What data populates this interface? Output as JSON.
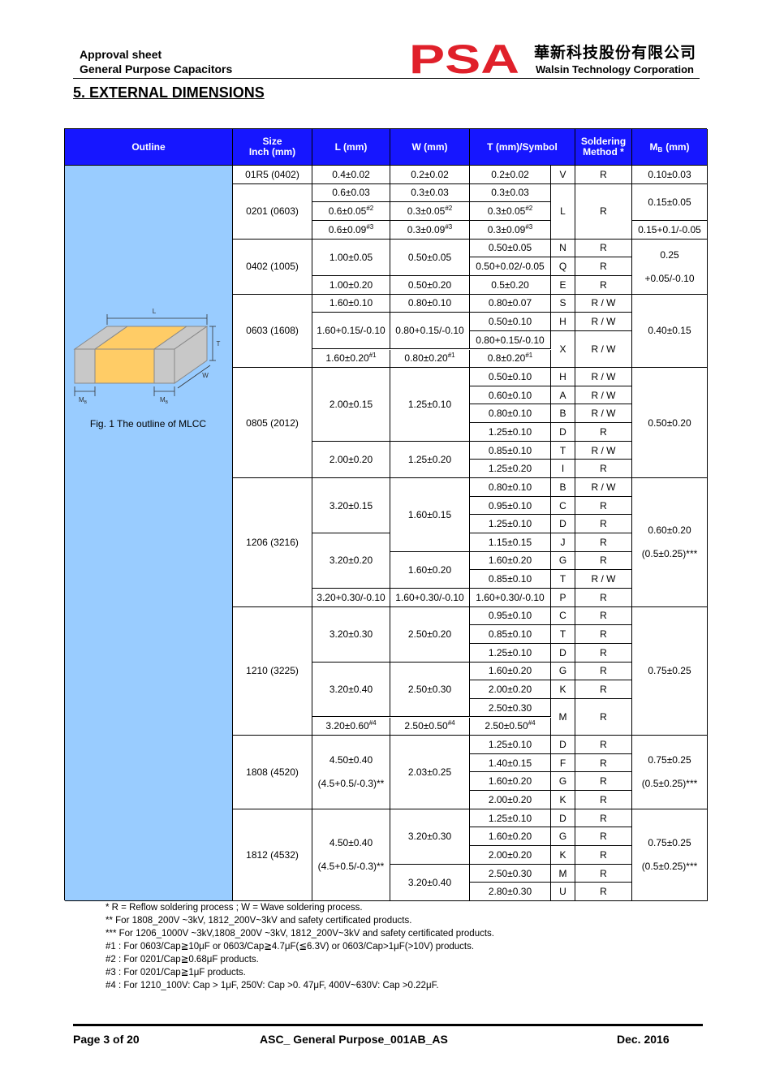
{
  "header": {
    "doc_title": "Approval sheet",
    "product": "General Purpose Capacitors",
    "logo": "PSA",
    "company_cn": "華新科技股份有限公司",
    "company_en": "Walsin Technology Corporation"
  },
  "section_title": "5. EXTERNAL DIMENSIONS",
  "table": {
    "headers": {
      "outline": "Outline",
      "size": [
        "Size",
        "Inch (mm)"
      ],
      "L": "L (mm)",
      "W": "W (mm)",
      "T": "T (mm)/Symbol",
      "soldering": [
        "Soldering",
        "Method *"
      ],
      "mb": {
        "main": "M",
        "sub": "B",
        "unit": "(mm)"
      }
    },
    "figure": {
      "L": "L",
      "T": "T",
      "W": "W",
      "mb_left": {
        "main": "M",
        "sub": "B"
      },
      "mb_right": {
        "main": "M",
        "sub": "B"
      },
      "caption": "Fig. 1 The outline of MLCC"
    },
    "groups": [
      {
        "size": "01R5 (0402)",
        "L": [
          "0.4±0.02"
        ],
        "W": [
          "0.2±0.02"
        ],
        "T": [
          "0.2±0.02"
        ],
        "symbol": [
          "V"
        ],
        "soldering": [
          "R"
        ],
        "mb": [
          "0.10±0.03"
        ]
      },
      {
        "size": "0201 (0603)",
        "L": [
          "0.6±0.03",
          {
            "text": "0.6±0.05",
            "sup": "#2"
          },
          {
            "text": "0.6±0.09",
            "sup": "#3"
          }
        ],
        "W": [
          "0.3±0.03",
          {
            "text": "0.3±0.05",
            "sup": "#2"
          },
          {
            "text": "0.3±0.09",
            "sup": "#3"
          }
        ],
        "T": [
          "0.3±0.03",
          {
            "text": "0.3±0.05",
            "sup": "#2"
          },
          {
            "text": "0.3±0.09",
            "sup": "#3"
          }
        ],
        "symbol": [
          "L"
        ],
        "soldering": [
          "R"
        ],
        "mb": [
          "0.15±0.05",
          "0.15+0.1/-0.05"
        ]
      },
      {
        "size": "0402 (1005)",
        "L": [
          "1.00±0.05",
          "1.00±0.20"
        ],
        "W": [
          "0.50±0.05",
          "0.50±0.20"
        ],
        "T": [
          "0.50±0.05",
          "0.50+0.02/-0.05",
          "0.5±0.20"
        ],
        "symbol": [
          "N",
          "Q",
          "E"
        ],
        "soldering": [
          "R",
          "R",
          "R"
        ],
        "mb": [
          {
            "lines": [
              "0.25",
              "+0.05/-0.10"
            ]
          }
        ]
      },
      {
        "size": "0603 (1608)",
        "L": [
          "1.60±0.10",
          "1.60+0.15/-0.10",
          {
            "text": "1.60±0.20",
            "sup": "#1"
          }
        ],
        "W": [
          "0.80±0.10",
          "0.80+0.15/-0.10",
          {
            "text": "0.80±0.20",
            "sup": "#1"
          }
        ],
        "T": [
          "0.80±0.07",
          "0.50±0.10",
          "0.80+0.15/-0.10",
          {
            "text": "0.8±0.20",
            "sup": "#1"
          }
        ],
        "symbol": [
          "S",
          "H",
          "X"
        ],
        "soldering": [
          "R / W",
          "R / W",
          "R / W"
        ],
        "mb": [
          "0.40±0.15"
        ]
      },
      {
        "size": "0805 (2012)",
        "L": [
          "2.00±0.15",
          "2.00±0.20"
        ],
        "W": [
          "1.25±0.10",
          "1.25±0.20"
        ],
        "T": [
          "0.50±0.10",
          "0.60±0.10",
          "0.80±0.10",
          "1.25±0.10",
          "0.85±0.10",
          "1.25±0.20"
        ],
        "symbol": [
          "H",
          "A",
          "B",
          "D",
          "T",
          "I"
        ],
        "soldering": [
          "R / W",
          "R / W",
          "R / W",
          "R",
          "R / W",
          "R"
        ],
        "mb": [
          "0.50±0.20"
        ]
      },
      {
        "size": "1206 (3216)",
        "L": [
          "3.20±0.15",
          "3.20±0.20",
          "3.20+0.30/-0.10"
        ],
        "W": [
          "1.60±0.15",
          "1.60±0.20",
          "1.60+0.30/-0.10"
        ],
        "T": [
          "0.80±0.10",
          "0.95±0.10",
          "1.25±0.10",
          "1.15±0.15",
          "1.60±0.20",
          "0.85±0.10",
          "1.60+0.30/-0.10"
        ],
        "symbol": [
          "B",
          "C",
          "D",
          "J",
          "G",
          "T",
          "P"
        ],
        "soldering": [
          "R / W",
          "R",
          "R",
          "R",
          "R",
          "R / W",
          "R"
        ],
        "mb": [
          {
            "lines": [
              "0.60±0.20",
              "(0.5±0.25)***"
            ]
          }
        ]
      },
      {
        "size": "1210 (3225)",
        "L": [
          "3.20±0.30",
          "3.20±0.40",
          {
            "text": "3.20±0.60",
            "sup": "#4"
          }
        ],
        "W": [
          "2.50±0.20",
          "2.50±0.30",
          {
            "text": "2.50±0.50",
            "sup": "#4"
          }
        ],
        "T": [
          "0.95±0.10",
          "0.85±0.10",
          "1.25±0.10",
          "1.60±0.20",
          "2.00±0.20",
          "2.50±0.30",
          {
            "text": "2.50±0.50",
            "sup": "#4"
          }
        ],
        "symbol": [
          "C",
          "T",
          "D",
          "G",
          "K",
          "M"
        ],
        "soldering": [
          "R",
          "R",
          "R",
          "R",
          "R",
          "R"
        ],
        "mb": [
          "0.75±0.25"
        ]
      },
      {
        "size": "1808 (4520)",
        "L": [
          {
            "lines": [
              "4.50±0.40",
              "(4.5+0.5/-0.3)**"
            ]
          }
        ],
        "W": [
          "2.03±0.25"
        ],
        "T": [
          "1.25±0.10",
          "1.40±0.15",
          "1.60±0.20",
          "2.00±0.20"
        ],
        "symbol": [
          "D",
          "F",
          "G",
          "K"
        ],
        "soldering": [
          "R",
          "R",
          "R",
          "R"
        ],
        "mb": [
          {
            "lines": [
              "0.75±0.25",
              "(0.5±0.25)***"
            ]
          }
        ]
      },
      {
        "size": "1812 (4532)",
        "L": [
          {
            "lines": [
              "4.50±0.40",
              "(4.5+0.5/-0.3)**"
            ]
          }
        ],
        "W": [
          "3.20±0.30",
          "3.20±0.40"
        ],
        "T": [
          "1.25±0.10",
          "1.60±0.20",
          "2.00±0.20",
          "2.50±0.30",
          "2.80±0.30"
        ],
        "symbol": [
          "D",
          "G",
          "K",
          "M",
          "U"
        ],
        "soldering": [
          "R",
          "R",
          "R",
          "R",
          "R"
        ],
        "mb": [
          {
            "lines": [
              "0.75±0.25",
              "(0.5±0.25)***"
            ]
          }
        ]
      }
    ]
  },
  "footnotes": [
    "* R = Reflow soldering process ; W = Wave soldering process.",
    "** For 1808_200V ~3kV, 1812_200V~3kV and safety certificated products.",
    "*** For 1206_1000V ~3kV,1808_200V ~3kV, 1812_200V~3kV and safety certificated products.",
    "#1 : For 0603/Cap≧10μF or 0603/Cap≧4.7μF(≦6.3V) or 0603/Cap>1μF(>10V) products.",
    "#2 : For 0201/Cap≧0.68μF products.",
    "#3 : For 0201/Cap≧1μF products.",
    "#4 : For 1210_100V: Cap > 1μF, 250V: Cap >0. 47μF, 400V~630V: Cap >0.22μF."
  ],
  "footer": {
    "page": "Page 3 of 20",
    "doc_id": "ASC_ General Purpose_001AB_AS",
    "date": "Dec. 2016"
  }
}
